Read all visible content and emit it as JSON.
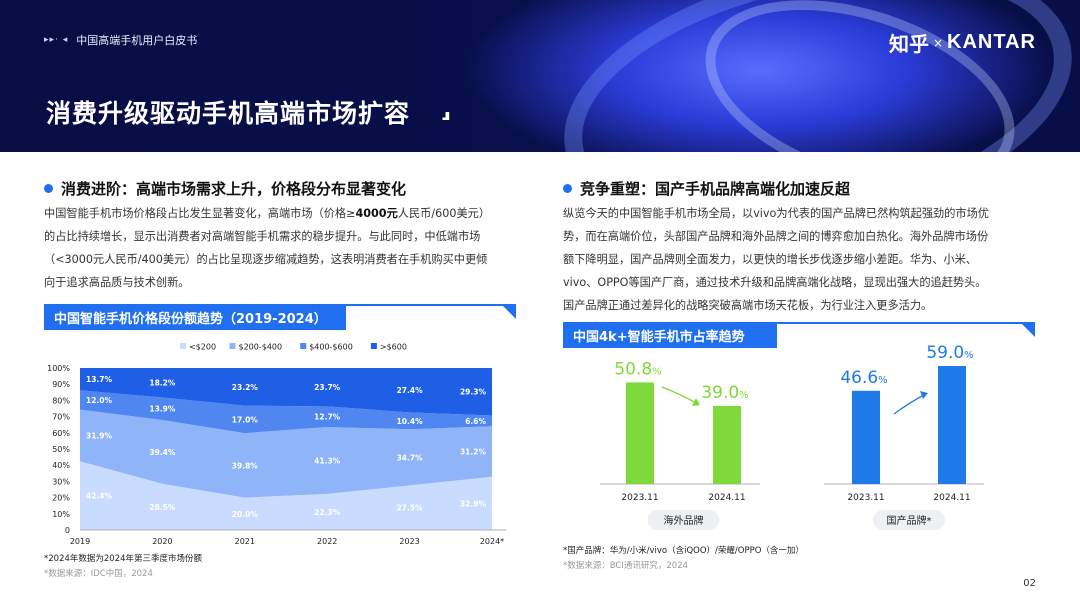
{
  "header": {
    "breadcrumb_dots": "▸▸· ◂",
    "breadcrumb": "中国高端手机用户白皮书",
    "logo_zhihu": "知乎",
    "logo_x": "×",
    "logo_kantar": "KANTAR",
    "title": "消费升级驱动手机高端市场扩容",
    "title_mark": "⸥"
  },
  "left": {
    "section_title": "消费进阶：高端市场需求上升，价格段分布显著变化",
    "para_1a": "中国智能手机市场价格段占比发生显著变化，高端市场（价格≥",
    "para_1b": "4000元",
    "para_1c": "人民币/600美元）",
    "para_2": "的占比持续增长，显示出消费者对高端智能手机需求的稳步提升。与此同时，中低端市场",
    "para_3": "（<3000元人民币/400美元）的占比呈现逐步缩减趋势，这表明消费者在手机购买中更倾",
    "para_4": "向于追求高品质与技术创新。",
    "chart_title": "中国智能手机价格段份额趋势（2019-2024）",
    "footnote": "*2024年数据为2024年第三季度市场份额",
    "source": "*数据来源：IDC中国，2024"
  },
  "right": {
    "section_title": "竞争重塑：国产手机品牌高端化加速反超",
    "para_1": "纵览今天的中国智能手机市场全局，以vivo为代表的国产品牌已然构筑起强劲的市场优",
    "para_2": "势，而在高端价位，头部国产品牌和海外品牌之间的博弈愈加白热化。海外品牌市场份",
    "para_3": "额下降明显，国产品牌则全面发力，以更快的增长步伐逐步缩小差距。华为、小米、",
    "para_4": "vivo、OPPO等国产厂商，通过技术升级和品牌高端化战略，显现出强大的追赶势头。",
    "para_5": "国产品牌正通过差异化的战略突破高端市场天花板，为行业注入更多活力。",
    "chart_title": "中国4k+智能手机市占率趋势",
    "footnote": "*国产品牌：华为/小米/vivo（含iQOO）/荣耀/OPPO（含一加）",
    "source": "*数据来源：BCI通讯研究，2024"
  },
  "page_number": "02",
  "colors": {
    "accent": "#1f6ff0",
    "lt200": "#c9dcff",
    "b200_400": "#8fb4f8",
    "b400_600": "#4f86ef",
    "gt600": "#1f5fe6",
    "green_bar": "#7fd93a",
    "blue_bar": "#1f7be8"
  },
  "chart_data": [
    {
      "type": "area",
      "title": "中国智能手机价格段份额趋势（2019-2024）",
      "categories": [
        "2019",
        "2020",
        "2021",
        "2022",
        "2023",
        "2024*"
      ],
      "stacked": true,
      "ylim": [
        0,
        100
      ],
      "yticks": [
        "0",
        "10%",
        "20%",
        "30%",
        "40%",
        "50%",
        "60%",
        "70%",
        "80%",
        "90%",
        "100%"
      ],
      "legend_position": "top",
      "series": [
        {
          "name": "<$200",
          "values": [
            42.4,
            28.5,
            20.0,
            22.3,
            27.5,
            32.9
          ],
          "labels": [
            "42.4%",
            "28.5%",
            "20.0%",
            "22.3%",
            "27.5%",
            "32.9%"
          ]
        },
        {
          "name": "$200-$400",
          "values": [
            31.9,
            39.4,
            39.8,
            41.3,
            34.7,
            31.2
          ],
          "labels": [
            "31.9%",
            "39.4%",
            "39.8%",
            "41.3%",
            "34.7%",
            "31.2%"
          ]
        },
        {
          "name": "$400-$600",
          "values": [
            12.0,
            13.9,
            17.0,
            12.7,
            10.4,
            6.6
          ],
          "labels": [
            "12.0%",
            "13.9%",
            "17.0%",
            "12.7%",
            "10.4%",
            "6.6%"
          ]
        },
        {
          "name": ">$600",
          "values": [
            13.7,
            18.2,
            23.2,
            23.7,
            27.4,
            29.3
          ],
          "labels": [
            "13.7%",
            "18.2%",
            "23.2%",
            "23.7%",
            "27.4%",
            "29.3%"
          ]
        }
      ]
    },
    {
      "type": "bar",
      "title": "中国4k+智能手机市占率趋势",
      "groups": [
        {
          "name": "海外品牌",
          "categories": [
            "2023.11",
            "2024.11"
          ],
          "values": [
            50.8,
            39.0
          ],
          "labels": [
            "50.8",
            "39.0"
          ],
          "unit": "%",
          "trend": "down"
        },
        {
          "name": "国产品牌*",
          "categories": [
            "2023.11",
            "2024.11"
          ],
          "values": [
            46.6,
            59.0
          ],
          "labels": [
            "46.6",
            "59.0"
          ],
          "unit": "%",
          "trend": "up"
        }
      ]
    }
  ]
}
